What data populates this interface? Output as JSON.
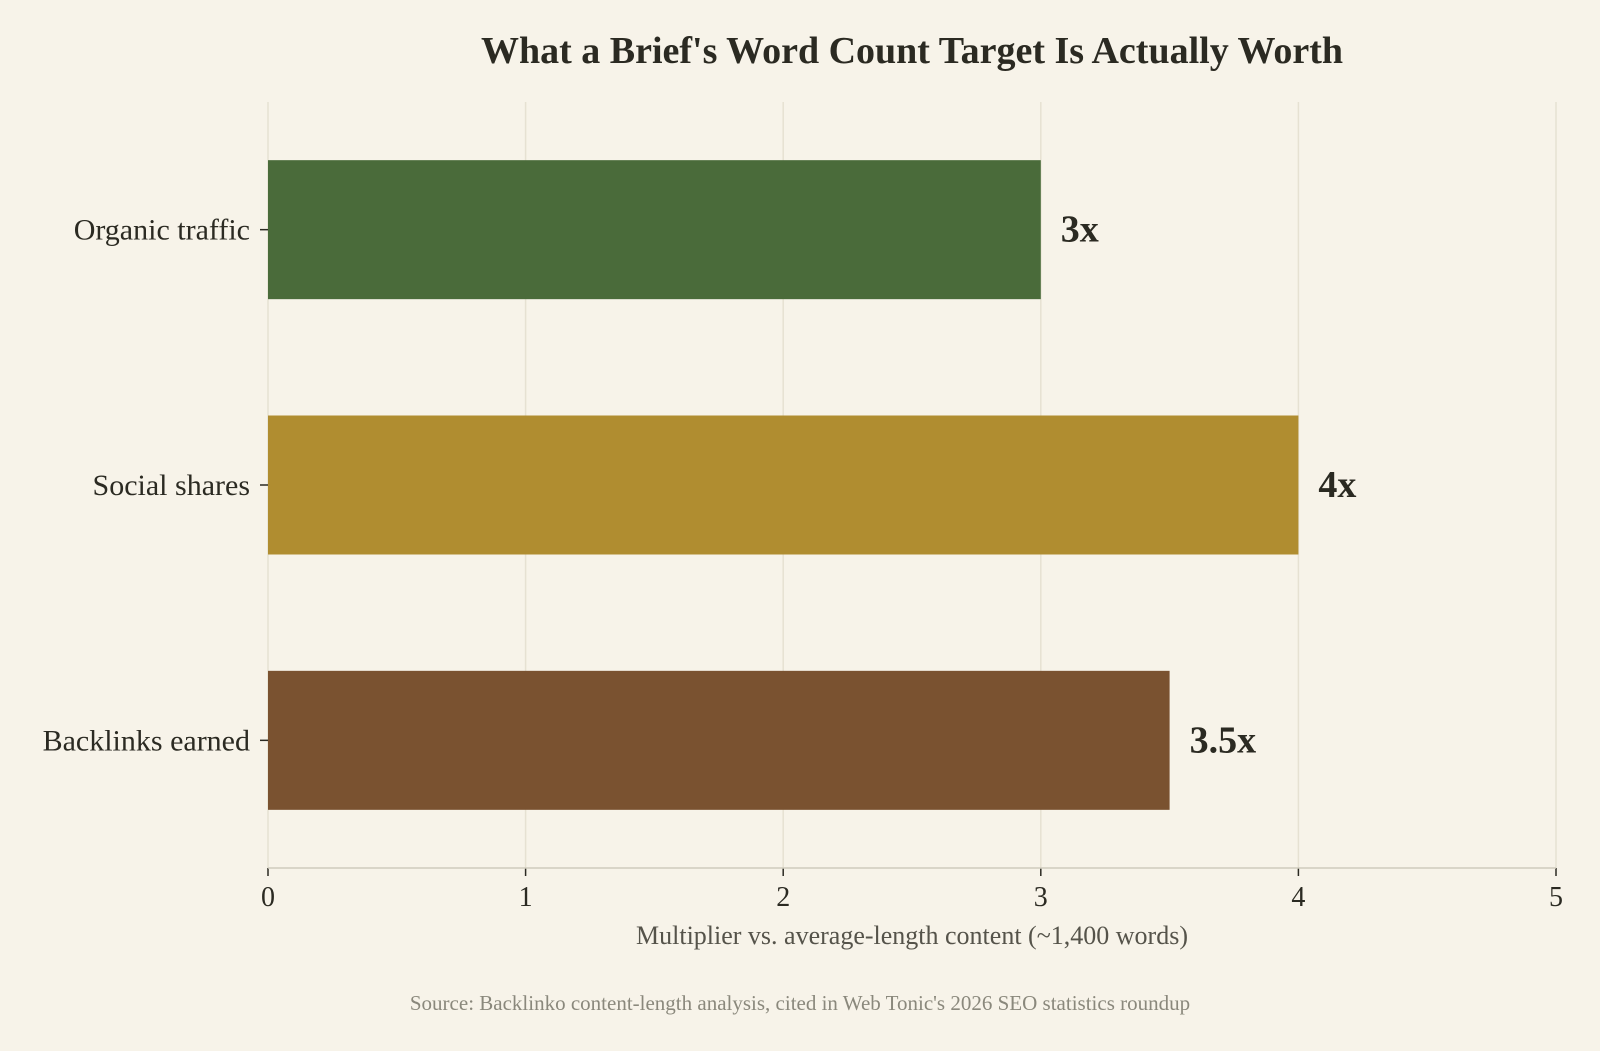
{
  "chart_data": {
    "type": "bar",
    "orientation": "horizontal",
    "title": "What a Brief's Word Count Target Is Actually Worth",
    "xlabel": "Multiplier vs. average-length content (~1,400 words)",
    "source": "Source: Backlinko content-length analysis, cited in Web Tonic's 2026 SEO statistics roundup",
    "categories": [
      "Organic traffic",
      "Social shares",
      "Backlinks earned"
    ],
    "values": [
      3,
      4,
      3.5
    ],
    "value_labels": [
      "3x",
      "4x",
      "3.5x"
    ],
    "colors": [
      "#4a6b3a",
      "#b08d30",
      "#7a5230"
    ],
    "xlim": [
      0,
      5
    ],
    "xticks": [
      "0",
      "1",
      "2",
      "3",
      "4",
      "5"
    ],
    "grid": "vertical"
  }
}
